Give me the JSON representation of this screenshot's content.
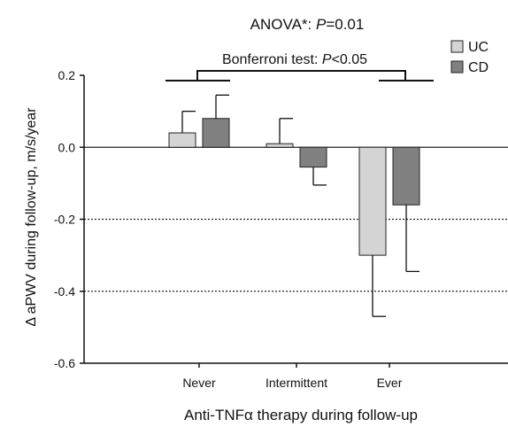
{
  "chart_data": {
    "type": "bar",
    "title_prefix": "ANOVA*: ",
    "title_p": "P",
    "title_suffix": "=0.01",
    "annotation_prefix": "Bonferroni test: ",
    "annotation_p": "P",
    "annotation_suffix": "<0.05",
    "xlabel": "Anti-TNFα therapy during follow-up",
    "ylabel": "Δ aPWV during follow-up, m/s/year",
    "categories": [
      "Never",
      "Intermittent",
      "Ever"
    ],
    "series": [
      {
        "name": "UC",
        "values": [
          0.04,
          0.01,
          -0.3
        ],
        "errors": [
          0.06,
          0.07,
          0.17
        ],
        "color": "#d4d4d4"
      },
      {
        "name": "CD",
        "values": [
          0.08,
          -0.055,
          -0.16
        ],
        "errors": [
          0.065,
          0.05,
          0.185
        ],
        "color": "#808080"
      }
    ],
    "ylim": [
      -0.6,
      0.2
    ],
    "yticks": [
      "0.2",
      "0.0",
      "-0.2",
      "-0.4",
      "-0.6"
    ],
    "ytick_values": [
      0.2,
      0.0,
      -0.2,
      -0.4,
      -0.6
    ],
    "dotted_gridlines": [
      -0.2,
      -0.4
    ],
    "zero_line": true,
    "legend_position": "top-right"
  }
}
